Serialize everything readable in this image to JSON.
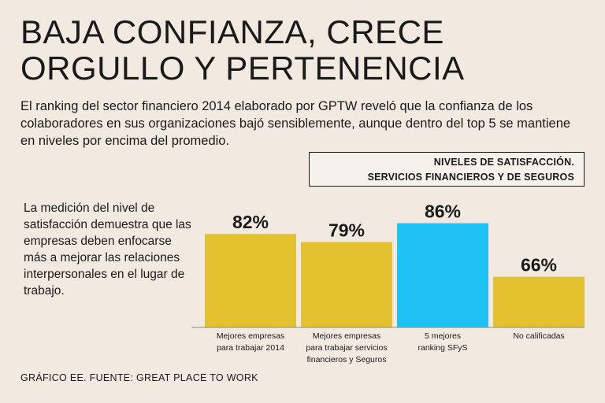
{
  "title_lines": [
    "BAJA CONFIANZA, CRECE",
    "ORGULLO Y PERTENENCIA"
  ],
  "intro": "El ranking del sector financiero 2014 elaborado por GPTW reveló que la confianza de los colaboradores en sus organizaciones bajó sensiblemente, aunque dentro del top 5 se mantiene en niveles por encima del promedio.",
  "legend": {
    "line1": "NIVELES DE SATISFACCIÓN.",
    "line2": "SERVICIOS FINANCIEROS Y DE SEGUROS"
  },
  "side_note": "La medición del nivel de satisfacción demuestra que las empresas deben enfocarse más a mejorar las relaciones interpersonales en el lugar de trabajo.",
  "source": "GRÁFICO EE. FUENTE: GREAT PLACE TO WORK",
  "colors": {
    "bar_default": "#e3c12f",
    "bar_highlight": "#1ec3f4",
    "background": "#f2e9e1"
  },
  "chart_data": {
    "type": "bar",
    "title": "NIVELES DE SATISFACCIÓN. SERVICIOS FINANCIEROS Y DE SEGUROS",
    "categories": [
      [
        "Mejores empresas",
        "para trabajar 2014"
      ],
      [
        "Mejores empresas",
        "para trabajar servicios",
        "financieros y Seguros"
      ],
      [
        "5 mejores",
        "ranking SFyS"
      ],
      [
        "No calificadas"
      ]
    ],
    "values": [
      82,
      79,
      86,
      66
    ],
    "value_labels": [
      "82%",
      "79%",
      "86%",
      "66%"
    ],
    "highlight_index": 2,
    "ylim": [
      0,
      100
    ],
    "xlabel": "",
    "ylabel": ""
  }
}
